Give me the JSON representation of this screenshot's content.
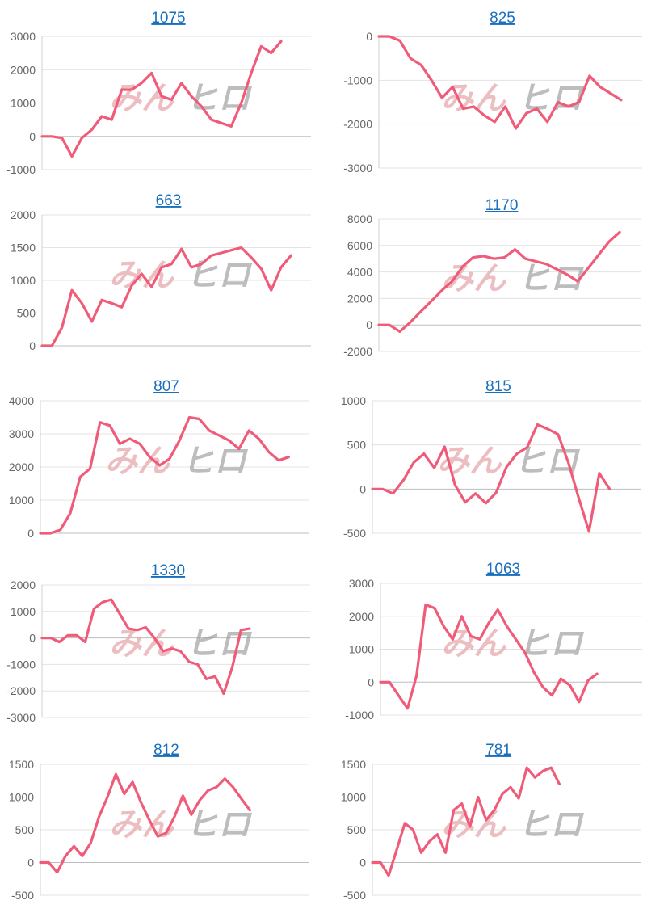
{
  "colors": {
    "line": "#ef5b78",
    "link": "#1a6fbd"
  },
  "watermark": {
    "left": "みん",
    "right": "ヒロ"
  },
  "chart_data": [
    {
      "type": "line",
      "title": "1075",
      "xlabel": "",
      "ylabel": "",
      "ylim": [
        -1000,
        3000
      ],
      "yticks": [
        3000,
        2000,
        1000,
        0,
        -1000
      ],
      "yticklabels": [
        "3000",
        "2000",
        "1000",
        "0",
        "-1000"
      ],
      "x": [
        0,
        1,
        2,
        3,
        4,
        5,
        6,
        7,
        8,
        9,
        10,
        11,
        12,
        13,
        14,
        15,
        16,
        17,
        18,
        19,
        20,
        21,
        22,
        23,
        24,
        25,
        26,
        27
      ],
      "values": [
        0,
        0,
        -50,
        -600,
        -50,
        200,
        600,
        500,
        1400,
        1400,
        1600,
        1900,
        1200,
        1100,
        1600,
        1200,
        900,
        500,
        400,
        300,
        1000,
        1900,
        2700,
        2500,
        2850,
        null,
        null,
        null
      ]
    },
    {
      "type": "line",
      "title": "825",
      "xlabel": "",
      "ylabel": "",
      "ylim": [
        -3000,
        0
      ],
      "yticks": [
        0,
        -1000,
        -2000,
        -3000
      ],
      "yticklabels": [
        "0",
        "-1000",
        "-2000",
        "-3000"
      ],
      "x": [
        0,
        1,
        2,
        3,
        4,
        5,
        6,
        7,
        8,
        9,
        10,
        11,
        12,
        13,
        14,
        15,
        16,
        17,
        18,
        19,
        20,
        21,
        22,
        23,
        24,
        25
      ],
      "values": [
        0,
        0,
        -100,
        -500,
        -650,
        -1000,
        -1400,
        -1150,
        -1650,
        -1600,
        -1800,
        -1950,
        -1600,
        -2100,
        -1750,
        -1650,
        -1950,
        -1500,
        -1600,
        -1500,
        -900,
        -1150,
        -1300,
        -1450,
        null,
        null
      ]
    },
    {
      "type": "line",
      "title": "663",
      "xlabel": "",
      "ylabel": "",
      "ylim": [
        0,
        2000
      ],
      "yticks": [
        2000,
        1500,
        1000,
        500,
        0
      ],
      "yticklabels": [
        "2000",
        "1500",
        "1000",
        "500",
        "0"
      ],
      "x": [
        0,
        1,
        2,
        3,
        4,
        5,
        6,
        7,
        8,
        9,
        10,
        11,
        12,
        13,
        14,
        15,
        16,
        17,
        18,
        19,
        20,
        21,
        22,
        23,
        24,
        25,
        26,
        27
      ],
      "values": [
        0,
        0,
        280,
        850,
        650,
        370,
        700,
        650,
        590,
        920,
        1100,
        900,
        1200,
        1250,
        1480,
        1200,
        1250,
        1380,
        1420,
        1460,
        1500,
        1350,
        1180,
        850,
        1200,
        1380,
        null,
        null
      ]
    },
    {
      "type": "line",
      "title": "1170",
      "xlabel": "",
      "ylabel": "",
      "ylim": [
        -2000,
        8000
      ],
      "yticks": [
        8000,
        6000,
        4000,
        2000,
        0,
        -2000
      ],
      "yticklabels": [
        "8000",
        "6000",
        "4000",
        "2000",
        "0",
        "-2000"
      ],
      "x": [
        0,
        1,
        2,
        3,
        4,
        5,
        6,
        7,
        8,
        9,
        10,
        11,
        12,
        13,
        14,
        15,
        16,
        17,
        18,
        19,
        20,
        21,
        22,
        23,
        24,
        25
      ],
      "values": [
        0,
        0,
        -500,
        200,
        1000,
        1800,
        2600,
        3300,
        4400,
        5100,
        5200,
        5000,
        5100,
        5700,
        5000,
        4800,
        4600,
        4200,
        3800,
        3300,
        4300,
        5300,
        6300,
        7000,
        null,
        null
      ]
    },
    {
      "type": "line",
      "title": "807",
      "xlabel": "",
      "ylabel": "",
      "ylim": [
        0,
        4000
      ],
      "yticks": [
        4000,
        3000,
        2000,
        1000,
        0
      ],
      "yticklabels": [
        "4000",
        "3000",
        "2000",
        "1000",
        "0"
      ],
      "x": [
        0,
        1,
        2,
        3,
        4,
        5,
        6,
        7,
        8,
        9,
        10,
        11,
        12,
        13,
        14,
        15,
        16,
        17,
        18,
        19,
        20,
        21,
        22,
        23,
        24,
        25,
        26,
        27
      ],
      "values": [
        0,
        0,
        100,
        600,
        1700,
        1950,
        3350,
        3250,
        2700,
        2850,
        2700,
        2300,
        2050,
        2250,
        2800,
        3500,
        3450,
        3100,
        2950,
        2800,
        2550,
        3100,
        2850,
        2450,
        2200,
        2300,
        null,
        null
      ]
    },
    {
      "type": "line",
      "title": "815",
      "xlabel": "",
      "ylabel": "",
      "ylim": [
        -500,
        1000
      ],
      "yticks": [
        1000,
        500,
        0,
        -500
      ],
      "yticklabels": [
        "1000",
        "500",
        "0",
        "-500"
      ],
      "x": [
        0,
        1,
        2,
        3,
        4,
        5,
        6,
        7,
        8,
        9,
        10,
        11,
        12,
        13,
        14,
        15,
        16,
        17,
        18,
        19,
        20,
        21,
        22,
        23,
        24,
        25,
        26
      ],
      "values": [
        0,
        0,
        -50,
        100,
        300,
        400,
        240,
        480,
        50,
        -150,
        -50,
        -160,
        -40,
        250,
        400,
        470,
        730,
        680,
        620,
        300,
        -100,
        -480,
        180,
        0,
        null,
        null,
        null
      ]
    },
    {
      "type": "line",
      "title": "1330",
      "xlabel": "",
      "ylabel": "",
      "ylim": [
        -3000,
        2000
      ],
      "yticks": [
        2000,
        1000,
        0,
        -1000,
        -2000,
        -3000
      ],
      "yticklabels": [
        "2000",
        "1000",
        "0",
        "-1000",
        "-2000",
        "-3000"
      ],
      "x": [
        0,
        1,
        2,
        3,
        4,
        5,
        6,
        7,
        8,
        9,
        10,
        11,
        12,
        13,
        14,
        15,
        16,
        17,
        18,
        19,
        20,
        21,
        22,
        23,
        24,
        25,
        26,
        27,
        28,
        29,
        30,
        31
      ],
      "values": [
        0,
        0,
        -150,
        100,
        100,
        -150,
        1100,
        1350,
        1450,
        900,
        350,
        300,
        400,
        0,
        -500,
        -400,
        -500,
        -900,
        -1000,
        -1550,
        -1450,
        -2100,
        -1100,
        300,
        350,
        null,
        null,
        null,
        null,
        null,
        null,
        null
      ]
    },
    {
      "type": "line",
      "title": "1063",
      "xlabel": "",
      "ylabel": "",
      "ylim": [
        -1000,
        3000
      ],
      "yticks": [
        3000,
        2000,
        1000,
        0,
        -1000
      ],
      "yticklabels": [
        "3000",
        "2000",
        "1000",
        "0",
        "-1000"
      ],
      "x": [
        0,
        1,
        2,
        3,
        4,
        5,
        6,
        7,
        8,
        9,
        10,
        11,
        12,
        13,
        14,
        15,
        16,
        17,
        18,
        19,
        20,
        21,
        22,
        23,
        24,
        25,
        26,
        27,
        28,
        29
      ],
      "values": [
        0,
        0,
        -400,
        -800,
        200,
        2350,
        2250,
        1700,
        1300,
        2000,
        1400,
        1300,
        1800,
        2200,
        1700,
        1300,
        900,
        300,
        -150,
        -400,
        100,
        -100,
        -600,
        50,
        250,
        null,
        null,
        null,
        null,
        null
      ]
    },
    {
      "type": "line",
      "title": "812",
      "xlabel": "",
      "ylabel": "",
      "ylim": [
        -500,
        1500
      ],
      "yticks": [
        1500,
        1000,
        500,
        0,
        -500
      ],
      "yticklabels": [
        "1500",
        "1000",
        "500",
        "0",
        "-500"
      ],
      "x": [
        0,
        1,
        2,
        3,
        4,
        5,
        6,
        7,
        8,
        9,
        10,
        11,
        12,
        13,
        14,
        15,
        16,
        17,
        18,
        19,
        20,
        21,
        22,
        23,
        24,
        25,
        26,
        27,
        28,
        29,
        30,
        31,
        32
      ],
      "values": [
        0,
        0,
        -150,
        100,
        250,
        100,
        300,
        700,
        1000,
        1350,
        1050,
        1230,
        920,
        650,
        400,
        450,
        700,
        1020,
        730,
        950,
        1100,
        1150,
        1280,
        1150,
        970,
        800,
        null,
        null,
        null,
        null,
        null,
        null,
        null
      ]
    },
    {
      "type": "line",
      "title": "781",
      "xlabel": "",
      "ylabel": "",
      "ylim": [
        -500,
        1500
      ],
      "yticks": [
        1500,
        1000,
        500,
        0,
        -500
      ],
      "yticklabels": [
        "1500",
        "1000",
        "500",
        "0",
        "-500"
      ],
      "x": [
        0,
        1,
        2,
        3,
        4,
        5,
        6,
        7,
        8,
        9,
        10,
        11,
        12,
        13,
        14,
        15,
        16,
        17,
        18,
        19,
        20,
        21,
        22,
        23,
        24,
        25,
        26,
        27,
        28,
        29,
        30,
        31,
        32,
        33
      ],
      "values": [
        0,
        0,
        -200,
        200,
        600,
        500,
        150,
        320,
        430,
        150,
        800,
        900,
        550,
        1000,
        650,
        800,
        1050,
        1150,
        980,
        1450,
        1300,
        1400,
        1450,
        1200,
        null,
        null,
        null,
        null,
        null,
        null,
        null,
        null,
        null,
        null
      ]
    }
  ]
}
